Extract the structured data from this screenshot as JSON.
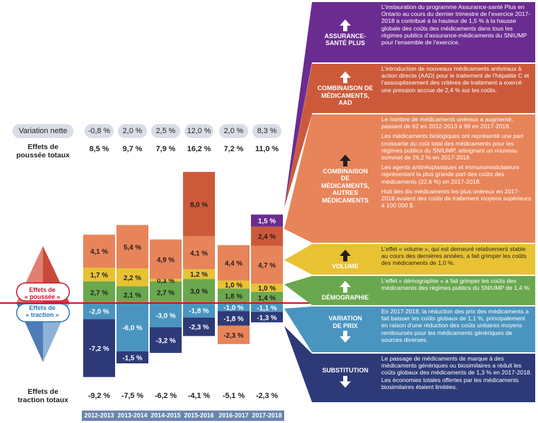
{
  "labels": {
    "variation_nette": "Variation nette",
    "effets_poussee": "Effets de\npoussée totaux",
    "effets_traction": "Effets de\ntraction totaux",
    "poussee_diamond": "Effets de\n« poussée »",
    "traction_diamond": "Effets de\n« traction »"
  },
  "chart_data": {
    "type": "bar",
    "categories": [
      "2012-2013",
      "2013-2014",
      "2014-2015",
      "2015-2016",
      "2016-2017",
      "2017-2018"
    ],
    "variation_nette": [
      "-0,8 %",
      "2,0 %",
      "2,5 %",
      "12,0 %",
      "2,0 %",
      "8,3 %"
    ],
    "poussee_totaux": [
      "8,5 %",
      "9,7 %",
      "7,9 %",
      "16,2 %",
      "7,2 %",
      "11,0 %"
    ],
    "traction_totaux": [
      "-9,2 %",
      "-7,5 %",
      "-6,2 %",
      "-4,1 %",
      "-5,1 %",
      "-2,3 %"
    ],
    "positive_series": [
      {
        "name": "DÉMOGRAPHIE",
        "color": "#6aa84f",
        "values": [
          2.7,
          2.1,
          2.7,
          3.0,
          1.8,
          1.4
        ],
        "labels": [
          "2,7 %",
          "2,1 %",
          "2,7 %",
          "3,0 %",
          "1,8 %",
          "1,4 %"
        ]
      },
      {
        "name": "VOLUME",
        "color": "#e8c232",
        "values": [
          1.7,
          2.2,
          0.3,
          1.2,
          1.0,
          1.0
        ],
        "labels": [
          "1,7 %",
          "2,2 %",
          "0,3 %",
          "1,2 %",
          "1,0 %",
          "1,0 %"
        ]
      },
      {
        "name": "COMBINAISON DE MÉDICAMENTS, AUTRES MÉDICAMENTS",
        "color": "#e8845a",
        "values": [
          4.1,
          5.4,
          4.9,
          4.1,
          4.4,
          4.7
        ],
        "labels": [
          "4,1 %",
          "5,4 %",
          "4,9 %",
          "4,1 %",
          "4,4 %",
          "4,7 %"
        ]
      },
      {
        "name": "COMBINAISON DE MÉDICAMENTS, AAD",
        "color": "#cc5a3a",
        "values": [
          0,
          0,
          0,
          8.0,
          0,
          2.4
        ],
        "labels": [
          "",
          "",
          "",
          "8,0 %",
          "",
          "2,4 %"
        ]
      },
      {
        "name": "ASSURANCE-SANTÉ PLUS",
        "color": "#6b2c91",
        "values": [
          0,
          0,
          0,
          0,
          0,
          1.5
        ],
        "labels": [
          "",
          "",
          "",
          "",
          "",
          "1,5 %"
        ]
      }
    ],
    "negative_series": [
      {
        "name": "VARIATION DE PRIX",
        "color": "#4a95c0",
        "values": [
          -2.0,
          -6.0,
          -3.0,
          -1.8,
          -1.0,
          -1.1
        ],
        "labels": [
          "-2,0 %",
          "-6,0 %",
          "-3,0 %",
          "-1,8 %",
          "-1,0 %",
          "-1,1 %"
        ]
      },
      {
        "name": "SUBSTITUTION",
        "color": "#2e3a78",
        "values": [
          -7.2,
          -1.5,
          -3.2,
          -2.3,
          -1.8,
          -1.3
        ],
        "labels": [
          "-7,2 %",
          "-1,5 %",
          "-3,2 %",
          "-2,3 %",
          "-1,8 %",
          "-1,3 %"
        ]
      },
      {
        "name": "COMBINAISON DE MÉDICAMENTS, AUTRES MÉDICAMENTS",
        "color": "#e8845a",
        "values": [
          0,
          0,
          0,
          0,
          -2.3,
          0
        ],
        "labels": [
          "",
          "",
          "",
          "",
          "-2,3 %",
          ""
        ]
      }
    ]
  },
  "panels": [
    {
      "id": "asp",
      "title": "ASSURANCE-\nSANTÉ PLUS",
      "color": "#6b2c91",
      "arrow": "up",
      "text": [
        "L’instauration du programme Assurance-santé Plus en Ontario au cours du dernier trimestre de l’exercice 2017-2018 a contribué à la hauteur de 1,5 % à la hausse globale des coûts des médicaments dans tous les régimes publics d’assurance-médicaments du SNIUMP pour l’ensemble de l’exercice."
      ]
    },
    {
      "id": "aad",
      "title": "COMBINAISON DE\nMÉDICAMENTS,\nAAD",
      "color": "#cc5a3a",
      "arrow": "up",
      "text": [
        "L’introduction de nouveaux médicaments antiviraux à action directe (AAD) pour le traitement de l’hépatite C et l’assouplissement des critères de traitement a exercé une pression accrue de 2,4 % sur les coûts."
      ]
    },
    {
      "id": "autres",
      "title": "COMBINAISON\nDE\nMÉDICAMENTS,\nAUTRES\nMÉDICAMENTS",
      "color": "#e8845a",
      "arrow": "up-dark",
      "text": [
        "Le nombre de médicaments onéreux a augmenté, passant de 62 en 2012-2013 à 99 en 2017-2018.",
        "Les médicaments biologiques ont représenté une part croissante du coût total des médicaments pour les régimes publics du SNIUMP, atteignant un nouveau sommet de 26,2 % en 2017-2018.",
        "Les agents antinéoplasiques et immunomodulateurs représentant la plus grande part des coûts des médicaments (22,6 %) en 2017-2018.",
        "Huit des dix médicaments les plus onéreux en 2017-2018 avaient des coûts de traitement moyens supérieurs à 100 000 $."
      ]
    },
    {
      "id": "volume",
      "title": "VOLUME",
      "color": "#e8c232",
      "arrow": "up-dark",
      "text": [
        "L’effet « volume », qui est demeuré relativement stable au cours des dernières années, a fait grimper les coûts des médicaments de 1,0 %."
      ]
    },
    {
      "id": "demo",
      "title": "DÉMOGRAPHIE",
      "color": "#6aa84f",
      "arrow": "up",
      "text": [
        "L’effet « démographie » a fait grimper les coûts des médicaments des régimes publics du SNIUMP de 1,4 %."
      ]
    },
    {
      "id": "prix",
      "title": "VARIATION\nDE PRIX",
      "color": "#4a95c0",
      "arrow": "down",
      "text": [
        "En 2017-2018, la réduction des prix des médicaments a fait baisser les coûts globaux de 1,1 %, principalement en raison d’une réduction des coûts unitaires moyens remboursés pour les médicaments génériques de sources diverses."
      ]
    },
    {
      "id": "subst",
      "title": "SUBSTITUTION",
      "color": "#2e3a78",
      "arrow": "down",
      "text": [
        "Le passage de médicaments de marque à des médicaments génériques ou biosimilaires a réduit les coûts globaux des médicaments de 1,3 % en 2017-2018. Les économies totales offertes par les médicaments biosimilaires étaient limitées."
      ]
    }
  ]
}
